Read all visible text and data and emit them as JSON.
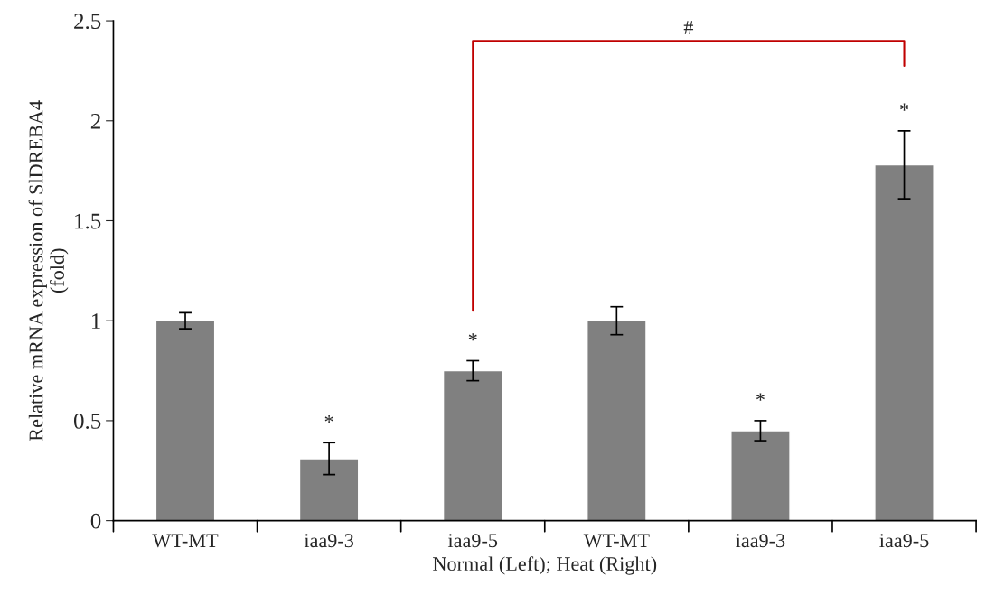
{
  "chart_data": {
    "type": "bar",
    "categories": [
      "WT-MT",
      "iaa9-3",
      "iaa9-5",
      "WT-MT",
      "iaa9-3",
      "iaa9-5"
    ],
    "values": [
      1.0,
      0.31,
      0.75,
      1.0,
      0.45,
      1.78
    ],
    "errors": [
      0.04,
      0.08,
      0.05,
      0.07,
      0.05,
      0.17
    ],
    "value_labels": [
      null,
      "*",
      "*",
      null,
      "*",
      "*"
    ],
    "color": "#808080",
    "xlabel": "Normal (Left); Heat (Right)",
    "ylabel": "Relative mRNA expression of SlDREBA4\n(fold)",
    "ylim": [
      0,
      2.5
    ],
    "yticks": [
      0,
      0.5,
      1,
      1.5,
      2,
      2.5
    ],
    "annotations": [
      "#"
    ],
    "grid": false,
    "legend": false
  }
}
